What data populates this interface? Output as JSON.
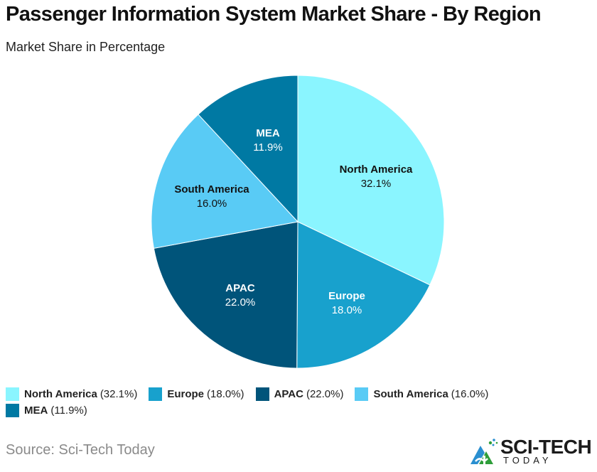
{
  "header": {
    "title": "Passenger Information System Market Share - By Region",
    "subtitle": "Market Share in Percentage"
  },
  "chart_data": {
    "type": "pie",
    "title": "Passenger Information System Market Share - By Region",
    "subtitle": "Market Share in Percentage",
    "categories": [
      "North America",
      "Europe",
      "APAC",
      "South America",
      "MEA"
    ],
    "values": [
      32.1,
      18.0,
      22.0,
      16.0,
      11.9
    ],
    "value_labels": [
      "32.1%",
      "18.0%",
      "22.0%",
      "16.0%",
      "11.9%"
    ],
    "colors": [
      "#8AF5FF",
      "#18A1CD",
      "#00547A",
      "#59CBF5",
      "#0079A3"
    ],
    "label_colors": [
      "#111111",
      "#ffffff",
      "#ffffff",
      "#111111",
      "#ffffff"
    ],
    "start_angle": "12 o'clock",
    "direction": "clockwise",
    "legend_position": "bottom"
  },
  "legend": {
    "items": [
      {
        "name": "North America",
        "value": "(32.1%)",
        "color": "#8AF5FF"
      },
      {
        "name": "Europe",
        "value": "(18.0%)",
        "color": "#18A1CD"
      },
      {
        "name": "APAC",
        "value": "(22.0%)",
        "color": "#00547A"
      },
      {
        "name": "South America",
        "value": "(16.0%)",
        "color": "#59CBF5"
      },
      {
        "name": "MEA",
        "value": "(11.9%)",
        "color": "#0079A3"
      }
    ]
  },
  "footer": {
    "source": "Source: Sci-Tech Today",
    "logo_main": "SCI-TECH",
    "logo_sub": "TODAY"
  }
}
